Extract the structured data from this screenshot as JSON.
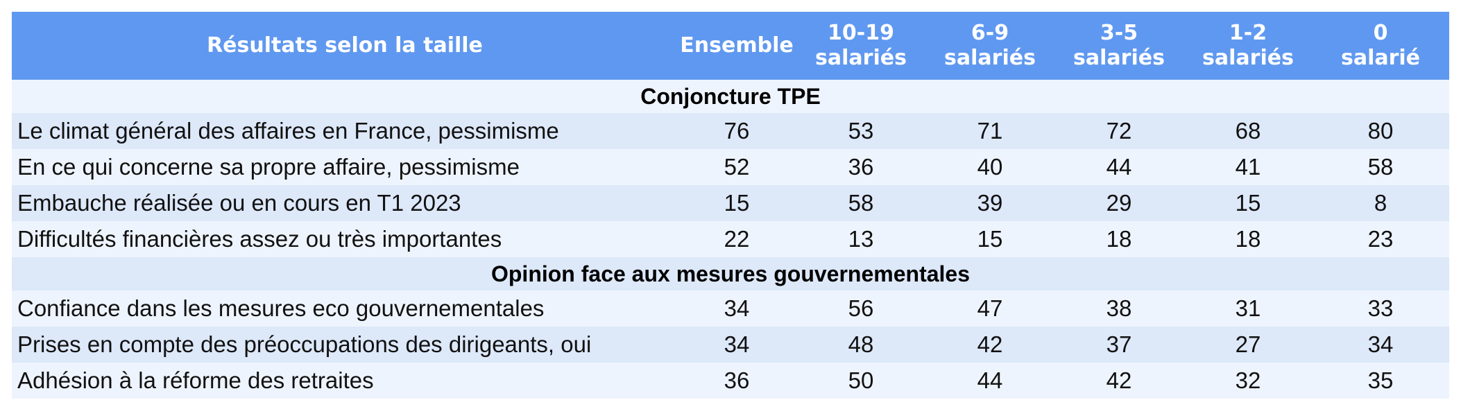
{
  "chart_data": {
    "type": "table",
    "columns": [
      "Résultats selon la taille",
      "Ensemble",
      [
        "10-19",
        "salariés"
      ],
      [
        "6-9",
        "salariés"
      ],
      [
        "3-5",
        "salariés"
      ],
      [
        "1-2",
        "salariés"
      ],
      [
        "0",
        "salarié"
      ]
    ],
    "sections": [
      {
        "title": "Conjoncture TPE",
        "rows": [
          {
            "label": "Le climat général des affaires en France, pessimisme",
            "values": [
              76,
              53,
              71,
              72,
              68,
              80
            ]
          },
          {
            "label": "En ce qui concerne sa propre affaire, pessimisme",
            "values": [
              52,
              36,
              40,
              44,
              41,
              58
            ]
          },
          {
            "label": "Embauche réalisée ou en cours en T1 2023",
            "values": [
              15,
              58,
              39,
              29,
              15,
              8
            ]
          },
          {
            "label": "Difficultés financières assez ou très importantes",
            "values": [
              22,
              13,
              15,
              18,
              18,
              23
            ]
          }
        ]
      },
      {
        "title": "Opinion face aux mesures gouvernementales",
        "rows": [
          {
            "label": "Confiance dans les mesures eco gouvernementales",
            "values": [
              34,
              56,
              47,
              38,
              31,
              33
            ]
          },
          {
            "label": "Prises en compte des préoccupations des dirigeants, oui",
            "values": [
              34,
              48,
              42,
              37,
              27,
              34
            ]
          },
          {
            "label": "Adhésion à la réforme des retraites",
            "values": [
              36,
              50,
              44,
              42,
              32,
              35
            ]
          }
        ]
      }
    ]
  },
  "colors": {
    "header_bg": "#5f98f0",
    "header_text": "#ffffff",
    "row_light": "#eef4fd",
    "row_mid": "#dde8f9"
  }
}
